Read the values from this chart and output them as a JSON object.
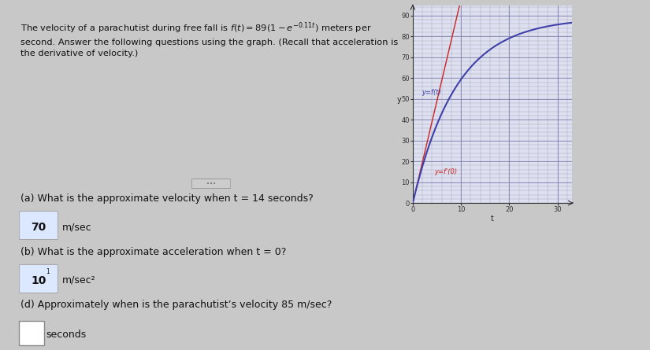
{
  "graph_ylabel": "y",
  "graph_xlabel": "t",
  "graph_xlim": [
    0,
    33
  ],
  "graph_ylim": [
    0,
    95
  ],
  "graph_xticks": [
    0,
    10,
    20,
    30
  ],
  "graph_yticks": [
    0,
    10,
    20,
    30,
    40,
    50,
    60,
    70,
    80,
    90
  ],
  "curve_color": "#4040aa",
  "tangent_color": "#cc2222",
  "curve_label": "y=f(t)",
  "tangent_label": "y=f'(0)",
  "bg_color": "#c8c8c8",
  "top_panel_color": "#e8e8e8",
  "bottom_panel_color": "#f0f0f0",
  "graph_bg": "#dde0ee",
  "qa_items": [
    {
      "question": "(a) What is the approximate velocity when t = 14 seconds?",
      "answer": "70",
      "answer_unit": "m/sec",
      "has_checkbox": false
    },
    {
      "question": "(b) What is the approximate acceleration when t = 0?",
      "answer": "10",
      "answer_superscript": "1",
      "answer_unit": "m/sec²",
      "has_checkbox": false
    },
    {
      "question": "(d) Approximately when is the parachutist’s velocity 85 m/sec?",
      "answer": "",
      "answer_unit": "seconds",
      "has_checkbox": true
    }
  ],
  "a_val": 89,
  "k_val": 0.11,
  "title_line1": "The velocity of a parachutist during free fall is f(t) = 89",
  "title_line2": " meters per",
  "title_line3": "second. Answer the following questions using the graph. (Recall that acceleration is",
  "title_line4": "the derivative of velocity.)"
}
